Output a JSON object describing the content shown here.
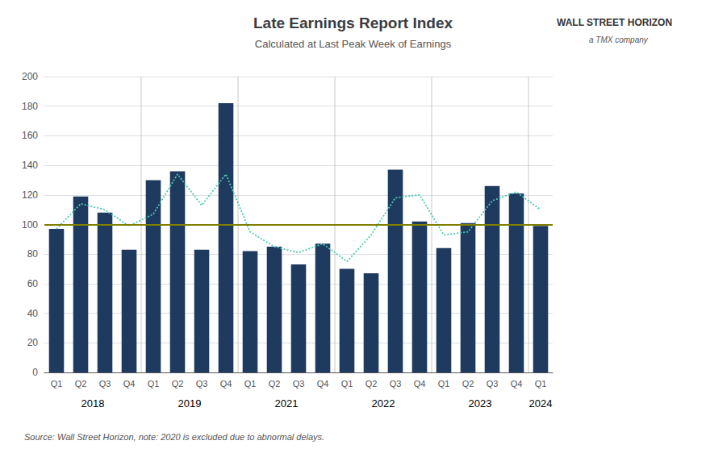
{
  "chart_data": {
    "type": "bar",
    "title": "Late Earnings Report Index",
    "subtitle": "Calculated at Last Peak Week of Earnings",
    "source": "Source: Wall Street Horizon, note: 2020 is excluded due to abnormal delays.",
    "annotations": [
      "WALL STREET HORIZON",
      "a TMX company"
    ],
    "categories": [
      "Q1",
      "Q2",
      "Q3",
      "Q4",
      "Q1",
      "Q2",
      "Q3",
      "Q4",
      "Q1",
      "Q2",
      "Q3",
      "Q4",
      "Q1",
      "Q2",
      "Q3",
      "Q4",
      "Q1",
      "Q2",
      "Q3",
      "Q4",
      "Q1"
    ],
    "year_groups": [
      {
        "label": "2018",
        "start": 0,
        "end": 3
      },
      {
        "label": "2019",
        "start": 4,
        "end": 7
      },
      {
        "label": "2021",
        "start": 8,
        "end": 11
      },
      {
        "label": "2022",
        "start": 12,
        "end": 15
      },
      {
        "label": "2023",
        "start": 16,
        "end": 19
      },
      {
        "label": "2024",
        "start": 20,
        "end": 20
      }
    ],
    "series": [
      {
        "type": "bar",
        "color": "#1e3a5f",
        "values": [
          97,
          119,
          108,
          83,
          130,
          136,
          83,
          182,
          82,
          85,
          73,
          87,
          70,
          67,
          137,
          102,
          84,
          101,
          126,
          121,
          99
        ]
      },
      {
        "type": "line",
        "color": "#4ec9b0",
        "line_style": "dotted",
        "values": [
          97,
          114,
          110,
          99,
          107,
          134,
          113,
          134,
          95,
          85,
          81,
          87,
          75,
          93,
          118,
          120,
          93,
          95,
          116,
          122,
          110
        ]
      }
    ],
    "reference_line": {
      "value": 100,
      "color": "#7f7f00"
    },
    "ylim": [
      0,
      200
    ],
    "yticks": [
      0,
      20,
      40,
      60,
      80,
      100,
      120,
      140,
      160,
      180,
      200
    ],
    "grid": true
  }
}
